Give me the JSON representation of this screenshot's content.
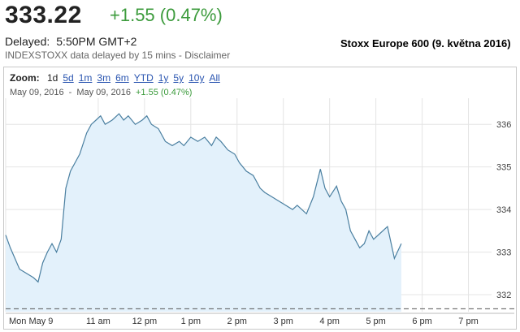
{
  "header": {
    "price": "333.22",
    "change": "+1.55 (0.47%)",
    "delayed_label": "Delayed:",
    "delayed_time": "5:50PM GMT+2",
    "source_note": "INDEXSTOXX data delayed by 15 mins - Disclaimer",
    "caption": "Stoxx Europe 600 (9. května 2016)"
  },
  "toolbar": {
    "zoom_label": "Zoom:",
    "options": [
      "1d",
      "5d",
      "1m",
      "3m",
      "6m",
      "YTD",
      "1y",
      "5y",
      "10y",
      "All"
    ],
    "active": "1d",
    "range_from": "May 09, 2016",
    "range_sep": "-",
    "range_to": "May 09, 2016",
    "range_change": "+1.55 (0.47%)"
  },
  "colors": {
    "line": "#4a7fa0",
    "fill": "#e3f1fb",
    "grid": "#e4e4e4",
    "positive": "#3c9b3c"
  },
  "chart_data": {
    "type": "area",
    "title": "",
    "xlabel": "",
    "ylabel": "",
    "x_tick_labels": [
      "Mon May 9",
      "11 am",
      "12 pm",
      "1 pm",
      "2 pm",
      "3 pm",
      "4 pm",
      "5 pm",
      "6 pm",
      "7 pm"
    ],
    "x_ticks_hours": [
      9,
      11,
      12,
      13,
      14,
      15,
      16,
      17,
      18,
      19
    ],
    "xlim": [
      9,
      19.5
    ],
    "y_ticks": [
      332,
      333,
      334,
      335,
      336
    ],
    "ylim": [
      331.6,
      336.5
    ],
    "previous_close": 331.67,
    "grid": true,
    "series": [
      {
        "x": [
          9.0,
          9.1,
          9.2,
          9.3,
          9.45,
          9.6,
          9.7,
          9.8,
          9.9,
          10.0,
          10.1,
          10.2,
          10.3,
          10.4,
          10.5,
          10.6,
          10.75,
          10.85,
          10.95,
          11.05,
          11.15,
          11.3,
          11.45,
          11.55,
          11.65,
          11.8,
          11.95,
          12.05,
          12.15,
          12.3,
          12.45,
          12.6,
          12.75,
          12.85,
          13.0,
          13.15,
          13.3,
          13.45,
          13.55,
          13.65,
          13.8,
          13.95,
          14.05,
          14.2,
          14.35,
          14.5,
          14.6,
          14.75,
          14.9,
          15.05,
          15.2,
          15.3,
          15.5,
          15.65,
          15.8,
          15.9,
          16.0,
          16.15,
          16.25,
          16.35,
          16.45,
          16.55,
          16.65,
          16.75,
          16.85,
          16.95,
          17.1,
          17.25,
          17.4,
          17.55
        ],
        "y": [
          333.4,
          333.1,
          332.85,
          332.6,
          332.5,
          332.4,
          332.3,
          332.75,
          333.0,
          333.2,
          333.0,
          333.3,
          334.5,
          334.9,
          335.1,
          335.3,
          335.8,
          336.0,
          336.1,
          336.2,
          336.0,
          336.1,
          336.25,
          336.1,
          336.2,
          336.0,
          336.1,
          336.2,
          336.0,
          335.9,
          335.6,
          335.5,
          335.6,
          335.5,
          335.7,
          335.6,
          335.7,
          335.5,
          335.7,
          335.6,
          335.4,
          335.3,
          335.1,
          334.9,
          334.8,
          334.5,
          334.4,
          334.3,
          334.2,
          334.1,
          334.0,
          334.1,
          333.9,
          334.3,
          334.95,
          334.5,
          334.3,
          334.55,
          334.2,
          334.0,
          333.5,
          333.3,
          333.1,
          333.2,
          333.5,
          333.3,
          333.45,
          333.6,
          332.85,
          333.2
        ]
      }
    ]
  }
}
